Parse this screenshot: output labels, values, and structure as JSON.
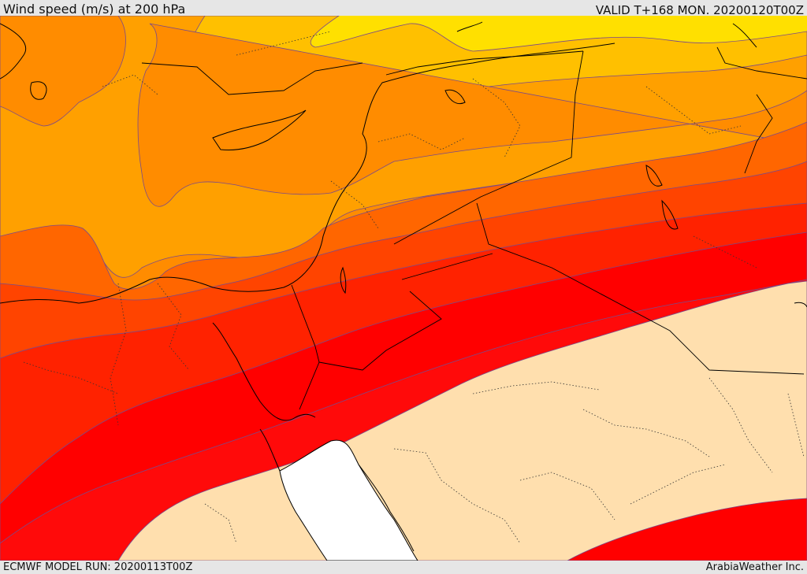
{
  "header": {
    "title": "Wind speed (m/s) at 200 hPa",
    "valid": "VALID T+168 MON. 20200120T00Z"
  },
  "footer": {
    "model_run": "ECMWF MODEL RUN: 20200113T00Z",
    "credit": "ArabiaWeather Inc."
  },
  "map": {
    "variable": "Wind speed",
    "units": "m/s",
    "level_hpa": 200,
    "fill_colors": [
      "#ffe000",
      "#ffc000",
      "#ffa000",
      "#ff8c00",
      "#ff6600",
      "#ff4400",
      "#ff2200",
      "#ff0000",
      "#ffdfae",
      "#ffffff"
    ],
    "line_colors": {
      "coast": "#000000",
      "border": "#000000",
      "contour": "#7a4a8a",
      "province": "#333333"
    }
  }
}
